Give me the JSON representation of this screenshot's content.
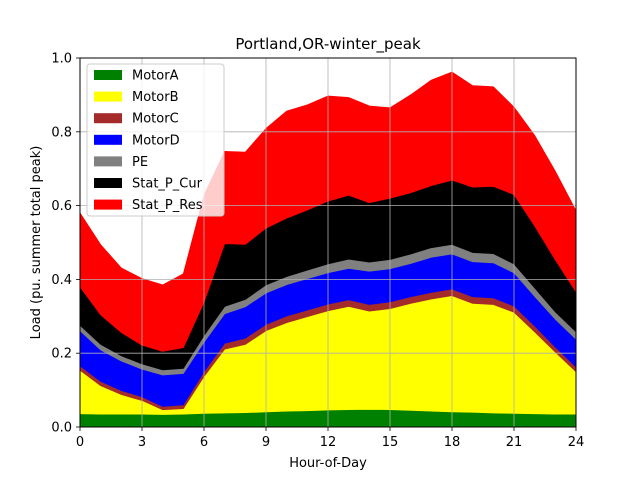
{
  "chart_data": {
    "type": "area",
    "title": "Portland,OR-winter_peak",
    "xlabel": "Hour-of-Day",
    "ylabel": "Load (pu. summer total peak)",
    "xlim": [
      0,
      24
    ],
    "ylim": [
      0,
      1.0
    ],
    "xticks": [
      "0",
      "3",
      "6",
      "9",
      "12",
      "15",
      "18",
      "21",
      "24"
    ],
    "yticks": [
      "0.0",
      "0.2",
      "0.4",
      "0.6",
      "0.8",
      "1.0"
    ],
    "grid": true,
    "legend_position": "top-left",
    "stacked": true,
    "x": [
      0,
      1,
      2,
      3,
      4,
      5,
      6,
      7,
      8,
      9,
      10,
      11,
      12,
      13,
      14,
      15,
      16,
      17,
      18,
      19,
      20,
      21,
      22,
      23,
      24
    ],
    "series": [
      {
        "name": "MotorA",
        "color": "#008000",
        "values": [
          0.036,
          0.035,
          0.035,
          0.035,
          0.034,
          0.035,
          0.037,
          0.038,
          0.039,
          0.041,
          0.043,
          0.044,
          0.046,
          0.047,
          0.048,
          0.047,
          0.045,
          0.043,
          0.041,
          0.04,
          0.038,
          0.037,
          0.036,
          0.035,
          0.035
        ]
      },
      {
        "name": "MotorB",
        "color": "#ffff00",
        "values": [
          0.118,
          0.077,
          0.053,
          0.037,
          0.013,
          0.015,
          0.1,
          0.173,
          0.185,
          0.22,
          0.24,
          0.255,
          0.269,
          0.28,
          0.266,
          0.274,
          0.29,
          0.304,
          0.315,
          0.295,
          0.294,
          0.274,
          0.222,
          0.168,
          0.115
        ]
      },
      {
        "name": "MotorC",
        "color": "#a52a2a",
        "values": [
          0.012,
          0.012,
          0.011,
          0.01,
          0.009,
          0.01,
          0.013,
          0.016,
          0.017,
          0.017,
          0.018,
          0.018,
          0.018,
          0.018,
          0.018,
          0.018,
          0.018,
          0.018,
          0.018,
          0.018,
          0.018,
          0.017,
          0.016,
          0.014,
          0.013
        ]
      },
      {
        "name": "MotorD",
        "color": "#0000ff",
        "values": [
          0.095,
          0.085,
          0.08,
          0.075,
          0.085,
          0.085,
          0.08,
          0.08,
          0.085,
          0.085,
          0.085,
          0.085,
          0.085,
          0.085,
          0.09,
          0.09,
          0.09,
          0.095,
          0.095,
          0.095,
          0.095,
          0.09,
          0.08,
          0.075,
          0.075
        ]
      },
      {
        "name": "PE",
        "color": "#808080",
        "values": [
          0.015,
          0.015,
          0.014,
          0.014,
          0.014,
          0.014,
          0.018,
          0.02,
          0.02,
          0.022,
          0.022,
          0.023,
          0.024,
          0.025,
          0.025,
          0.025,
          0.026,
          0.026,
          0.026,
          0.025,
          0.025,
          0.024,
          0.023,
          0.02,
          0.02
        ]
      },
      {
        "name": "Stat_P_Cur",
        "color": "#000000",
        "values": [
          0.104,
          0.08,
          0.063,
          0.051,
          0.05,
          0.056,
          0.09,
          0.17,
          0.149,
          0.154,
          0.158,
          0.163,
          0.17,
          0.173,
          0.161,
          0.166,
          0.166,
          0.168,
          0.174,
          0.177,
          0.182,
          0.188,
          0.168,
          0.141,
          0.108
        ]
      },
      {
        "name": "Stat_P_Res",
        "color": "#ff0000",
        "values": [
          0.2,
          0.19,
          0.175,
          0.18,
          0.18,
          0.2,
          0.29,
          0.25,
          0.25,
          0.27,
          0.29,
          0.285,
          0.285,
          0.265,
          0.262,
          0.245,
          0.265,
          0.286,
          0.293,
          0.275,
          0.27,
          0.237,
          0.245,
          0.24,
          0.22
        ]
      }
    ]
  }
}
